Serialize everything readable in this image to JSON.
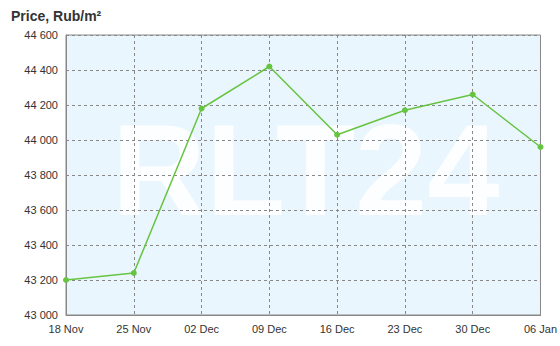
{
  "chart_data": {
    "type": "line",
    "title": "Price, Rub/m²",
    "annotation": "RLT24",
    "categories": [
      "18 Nov",
      "25 Nov",
      "02 Dec",
      "09 Dec",
      "16 Dec",
      "23 Dec",
      "30 Dec",
      "06 Jan"
    ],
    "values": [
      43200,
      43240,
      44180,
      44420,
      44030,
      44170,
      44260,
      43960
    ],
    "color": "#66c440",
    "marker": "circle",
    "ylim": [
      43000,
      44600
    ],
    "yticks": [
      {
        "value": 43000,
        "label": "43 000"
      },
      {
        "value": 43200,
        "label": "43 200"
      },
      {
        "value": 43400,
        "label": "43 400"
      },
      {
        "value": 43600,
        "label": "43 600"
      },
      {
        "value": 43800,
        "label": "43 800"
      },
      {
        "value": 44000,
        "label": "44 000"
      },
      {
        "value": 44200,
        "label": "44 200"
      },
      {
        "value": 44400,
        "label": "44 400"
      },
      {
        "value": 44600,
        "label": "44 600"
      }
    ],
    "grid": true
  }
}
